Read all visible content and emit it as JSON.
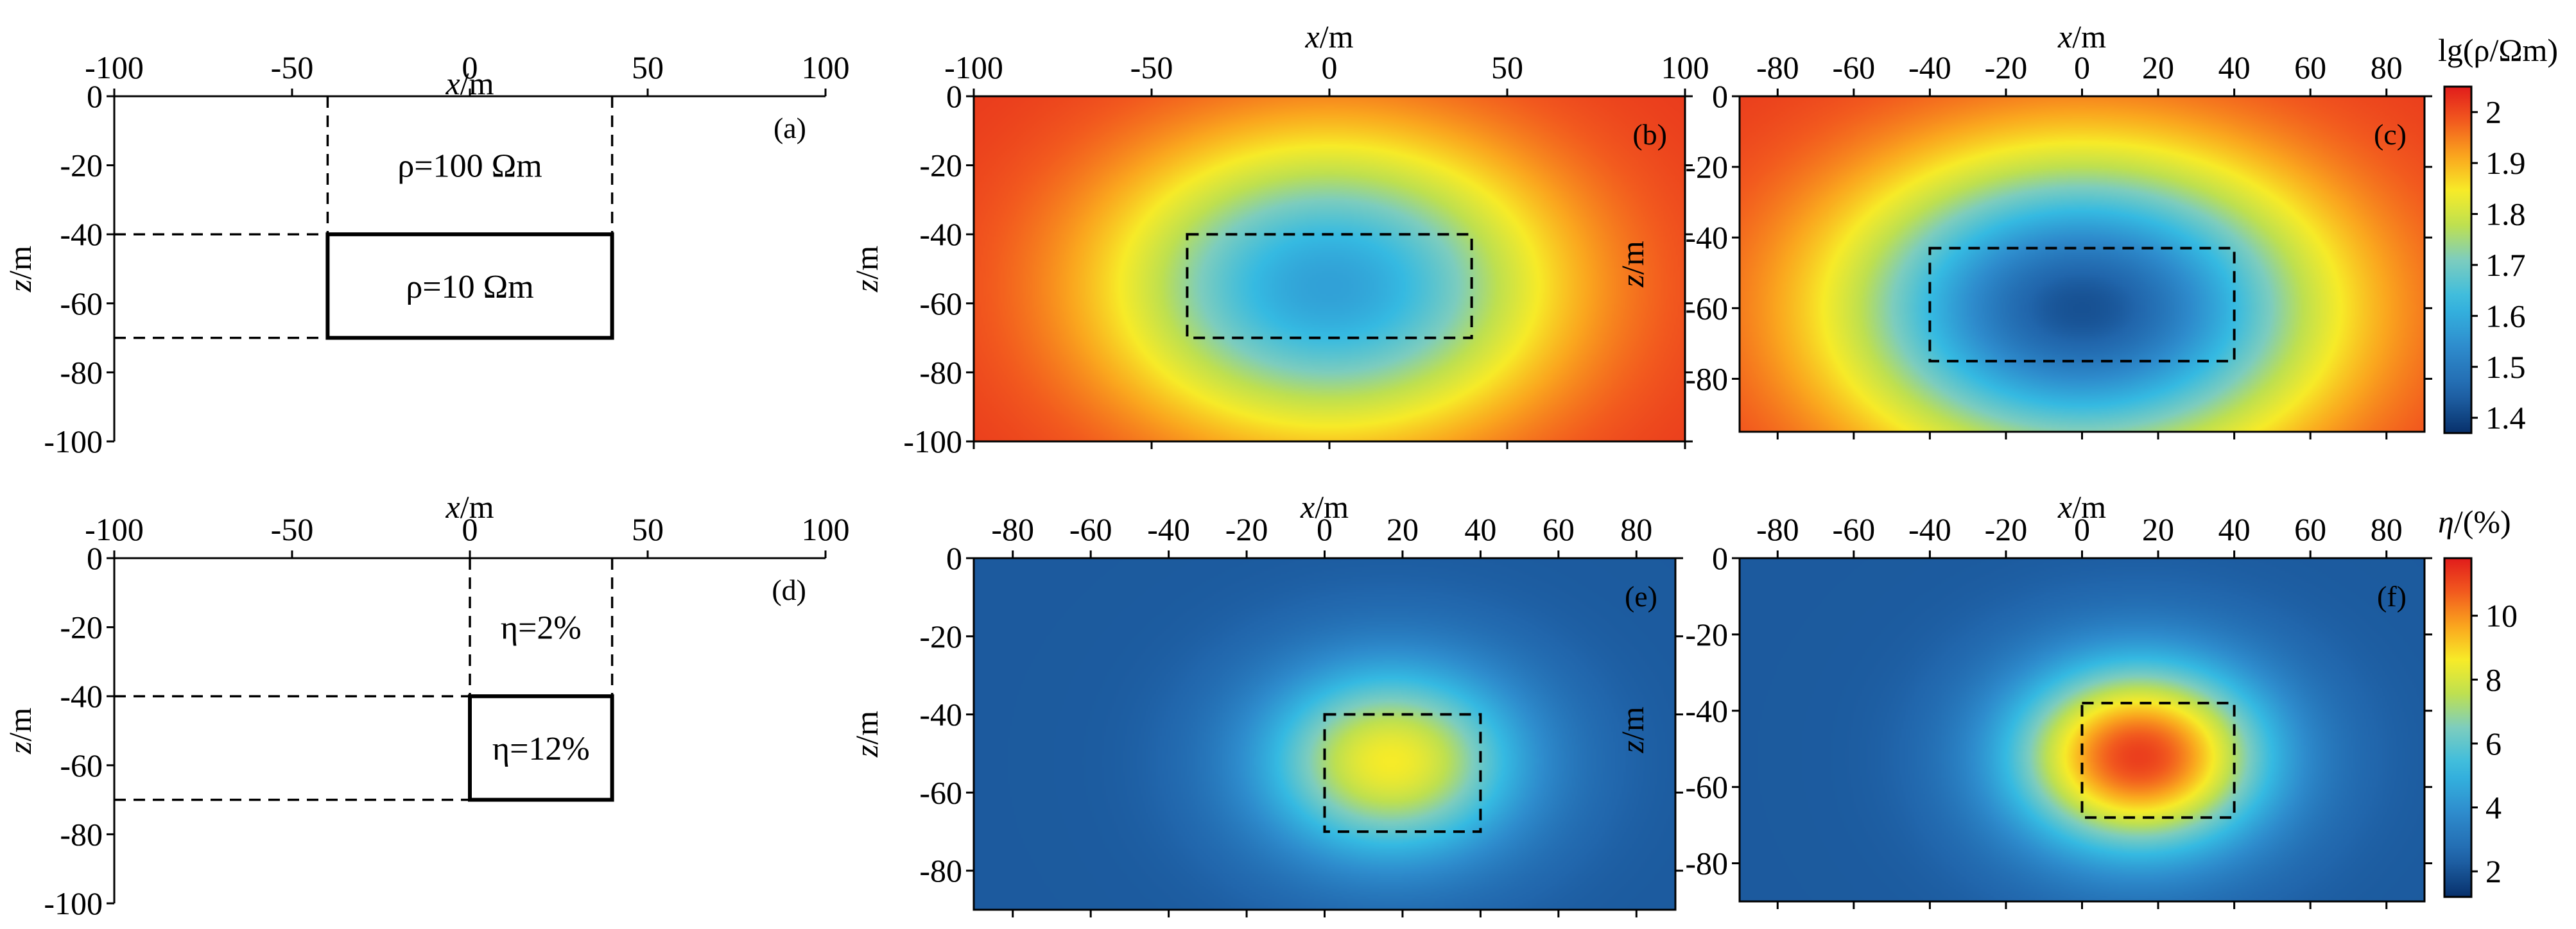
{
  "axis_labels": {
    "x": "x/m",
    "z": "z/m"
  },
  "colorbars": [
    {
      "label": "lg(ρ/Ωm)",
      "min": 1.37,
      "max": 2.05,
      "ticks": [
        "2",
        "1.9",
        "1.8",
        "1.7",
        "1.6",
        "1.5",
        "1.4"
      ],
      "tick_values": [
        2.0,
        1.9,
        1.8,
        1.7,
        1.6,
        1.5,
        1.4
      ]
    },
    {
      "label": "η/(%)",
      "min": 1.2,
      "max": 11.8,
      "ticks": [
        "10",
        "8",
        "6",
        "4",
        "2"
      ],
      "tick_values": [
        10,
        8,
        6,
        4,
        2
      ]
    }
  ],
  "colors": {
    "high": "#e31a1c",
    "low": "#08306b"
  },
  "chart_data": [
    {
      "panel": "(a)",
      "type": "model",
      "xlabel": "x/m",
      "ylabel": "z/m",
      "xlim": [
        -100,
        100
      ],
      "ylim": [
        0,
        -100
      ],
      "xticks": [
        -100,
        -50,
        0,
        50,
        100
      ],
      "yticks": [
        0,
        -20,
        -40,
        -60,
        -80,
        -100
      ],
      "background_label": "ρ=100 Ωm",
      "anomaly_label": "ρ=10 Ωm",
      "anomaly_box": {
        "x": [
          -40,
          40
        ],
        "z": [
          -40,
          -70
        ]
      }
    },
    {
      "panel": "(b)",
      "type": "heatmap",
      "quantity": "lg(ρ/Ωm)",
      "xlabel": "x/m",
      "ylabel": "z/m",
      "xlim": [
        -100,
        100
      ],
      "ylim": [
        0,
        -100
      ],
      "xticks": [
        -100,
        -50,
        0,
        50,
        100
      ],
      "yticks": [
        0,
        -20,
        -40,
        -60,
        -80,
        -100
      ],
      "background": 2.02,
      "minimum": 1.58,
      "center": {
        "x": 0,
        "z": -55
      },
      "box": {
        "x": [
          -40,
          40
        ],
        "z": [
          -40,
          -70
        ]
      }
    },
    {
      "panel": "(c)",
      "type": "heatmap",
      "quantity": "lg(ρ/Ωm)",
      "xlabel": "x/m",
      "ylabel": "z/m",
      "xlim": [
        -90,
        90
      ],
      "ylim": [
        0,
        -95
      ],
      "xticks": [
        -80,
        -60,
        -40,
        -20,
        0,
        20,
        40,
        60,
        80
      ],
      "yticks": [
        0,
        -20,
        -40,
        -60,
        -80
      ],
      "background": 2.02,
      "minimum": 1.42,
      "center": {
        "x": 0,
        "z": -60
      },
      "box": {
        "x": [
          -40,
          40
        ],
        "z": [
          -43,
          -75
        ]
      }
    },
    {
      "panel": "(d)",
      "type": "model",
      "xlabel": "x/m",
      "ylabel": "z/m",
      "xlim": [
        -100,
        100
      ],
      "ylim": [
        0,
        -100
      ],
      "xticks": [
        -100,
        -50,
        0,
        50,
        100
      ],
      "yticks": [
        0,
        -20,
        -40,
        -60,
        -80,
        -100
      ],
      "background_label": "η=2%",
      "anomaly_label": "η=12%",
      "anomaly_box": {
        "x": [
          0,
          40
        ],
        "z": [
          -40,
          -70
        ]
      }
    },
    {
      "panel": "(e)",
      "type": "heatmap",
      "quantity": "η/(%)",
      "xlabel": "x/m",
      "ylabel": "z/m",
      "xlim": [
        -90,
        90
      ],
      "ylim": [
        0,
        -90
      ],
      "xticks": [
        -80,
        -60,
        -40,
        -20,
        0,
        20,
        40,
        60,
        80
      ],
      "yticks": [
        0,
        -20,
        -40,
        -60,
        -80
      ],
      "background": 2.2,
      "maximum": 8.6,
      "center": {
        "x": 17,
        "z": -52
      },
      "box": {
        "x": [
          0,
          40
        ],
        "z": [
          -40,
          -70
        ]
      }
    },
    {
      "panel": "(f)",
      "type": "heatmap",
      "quantity": "η/(%)",
      "xlabel": "x/m",
      "ylabel": "z/m",
      "xlim": [
        -90,
        90
      ],
      "ylim": [
        0,
        -90
      ],
      "xticks": [
        -80,
        -60,
        -40,
        -20,
        0,
        20,
        40,
        60,
        80
      ],
      "yticks": [
        0,
        -20,
        -40,
        -60,
        -80
      ],
      "background": 2.2,
      "maximum": 11.2,
      "center": {
        "x": 15,
        "z": -52
      },
      "box": {
        "x": [
          0,
          40
        ],
        "z": [
          -38,
          -68
        ]
      }
    }
  ]
}
